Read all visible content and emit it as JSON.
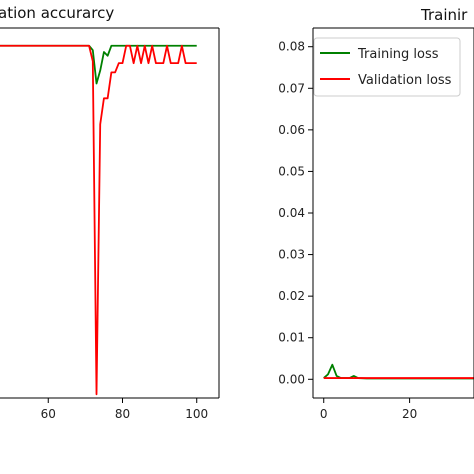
{
  "chart_data": [
    {
      "type": "line",
      "title": "ation accurarcy",
      "xlim": [
        47,
        106
      ],
      "ylim": [
        0,
        1
      ],
      "xticks": [
        60,
        80,
        100
      ],
      "xtick_labels": [
        "60",
        "80",
        "100"
      ],
      "grid": false,
      "series": [
        {
          "color": "#008000",
          "x": [
            47,
            60,
            70,
            71,
            72,
            73,
            74,
            75,
            76,
            77,
            78,
            79,
            80,
            81,
            82,
            83,
            84,
            85,
            86,
            87,
            88,
            89,
            90,
            91,
            92,
            93,
            94,
            95,
            96,
            97,
            98,
            99,
            100
          ],
          "y": [
            0.952,
            0.952,
            0.952,
            0.952,
            0.94,
            0.85,
            0.885,
            0.935,
            0.925,
            0.952,
            0.952,
            0.952,
            0.952,
            0.952,
            0.952,
            0.952,
            0.952,
            0.952,
            0.952,
            0.952,
            0.952,
            0.952,
            0.952,
            0.952,
            0.952,
            0.952,
            0.952,
            0.952,
            0.952,
            0.952,
            0.952,
            0.952,
            0.952
          ]
        },
        {
          "color": "#ff0000",
          "x": [
            47,
            60,
            70,
            71,
            72,
            73,
            74,
            75,
            76,
            77,
            78,
            79,
            80,
            81,
            82,
            83,
            84,
            85,
            86,
            87,
            88,
            89,
            90,
            91,
            92,
            93,
            94,
            95,
            96,
            97,
            98,
            99,
            100
          ],
          "y": [
            0.952,
            0.952,
            0.952,
            0.952,
            0.91,
            0.01,
            0.74,
            0.81,
            0.81,
            0.88,
            0.88,
            0.905,
            0.905,
            0.952,
            0.952,
            0.905,
            0.952,
            0.905,
            0.952,
            0.905,
            0.952,
            0.905,
            0.905,
            0.905,
            0.952,
            0.905,
            0.905,
            0.905,
            0.952,
            0.905,
            0.905,
            0.905,
            0.905
          ]
        }
      ]
    },
    {
      "type": "line",
      "title": "Trainir",
      "xlim": [
        -2.5,
        35
      ],
      "ylim": [
        -0.0045,
        0.0845
      ],
      "xticks": [
        0,
        20
      ],
      "xtick_labels": [
        "0",
        "20"
      ],
      "yticks": [
        0,
        0.01,
        0.02,
        0.03,
        0.04,
        0.05,
        0.06,
        0.07,
        0.08
      ],
      "ytick_labels": [
        "0.00",
        "0.01",
        "0.02",
        "0.03",
        "0.04",
        "0.05",
        "0.06",
        "0.07",
        "0.08"
      ],
      "grid": false,
      "legend_position": "top-left",
      "series": [
        {
          "name": "Training loss",
          "color": "#008000",
          "x": [
            0,
            1,
            2,
            3,
            4,
            5,
            6,
            7,
            8,
            10,
            15,
            20,
            25,
            30,
            35
          ],
          "y": [
            0.0003,
            0.0012,
            0.0035,
            0.0008,
            0.0003,
            0.0003,
            0.0003,
            0.0008,
            0.0003,
            0.0002,
            0.0002,
            0.0002,
            0.0002,
            0.0002,
            0.0002
          ]
        },
        {
          "name": "Validation loss",
          "color": "#ff0000",
          "x": [
            0,
            5,
            10,
            15,
            20,
            25,
            30,
            35
          ],
          "y": [
            0.0003,
            0.0003,
            0.0003,
            0.0003,
            0.0003,
            0.0003,
            0.0003,
            0.0003
          ]
        }
      ]
    }
  ]
}
